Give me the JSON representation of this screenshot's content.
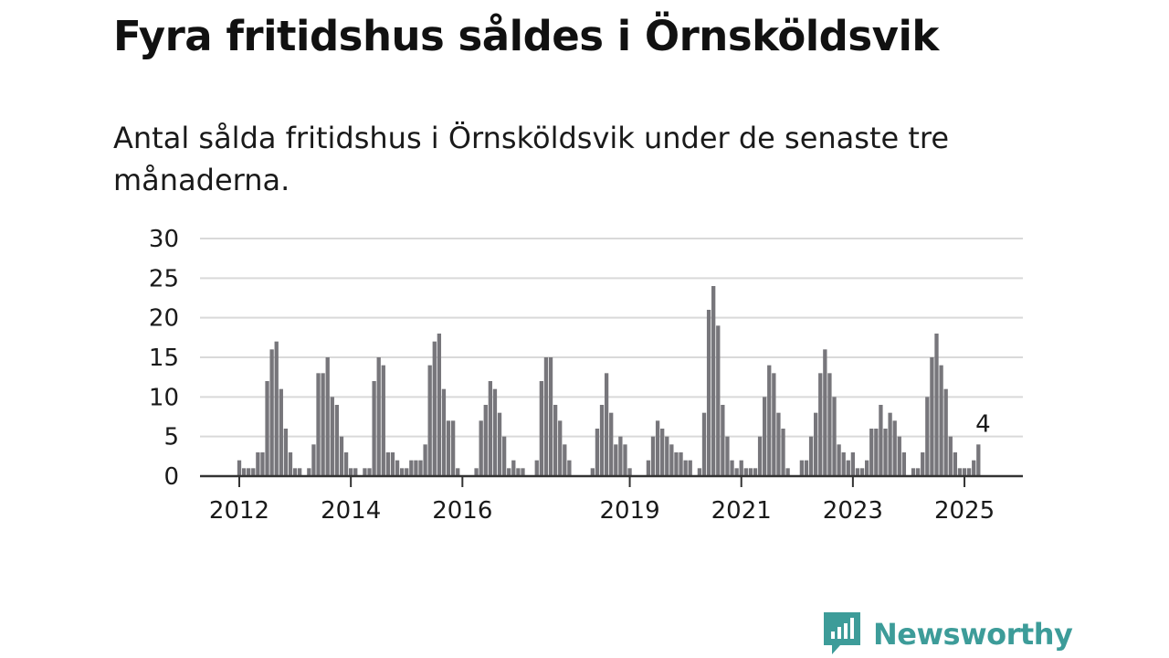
{
  "title": "Fyra fritidshus såldes i Örnsköldsvik",
  "subtitle": "Antal sålda fritidshus i Örnsköldsvik under de senaste tre månaderna.",
  "brand": {
    "name": "Newsworthy",
    "color": "#3d9c99"
  },
  "colors": {
    "bar": "#77767b",
    "highlight": "#1a9a96",
    "grid": "#d9d9d9",
    "axis": "#333333",
    "text": "#1a1a1a"
  },
  "chart_data": {
    "type": "bar",
    "ylim": [
      0,
      30
    ],
    "yticks": [
      0,
      5,
      10,
      15,
      20,
      25,
      30
    ],
    "xtick_labels": [
      {
        "label": "2012",
        "year": 2012
      },
      {
        "label": "2014",
        "year": 2014
      },
      {
        "label": "2016",
        "year": 2016
      },
      {
        "label": "2019",
        "year": 2019
      },
      {
        "label": "2021",
        "year": 2021
      },
      {
        "label": "2023",
        "year": 2023
      },
      {
        "label": "2025",
        "year": 2025
      }
    ],
    "grid": true,
    "highlight": {
      "year": 2025,
      "month": 5,
      "value": 4,
      "label": "4"
    },
    "years": [
      {
        "year": 2012,
        "values": [
          2,
          1,
          1,
          1,
          3,
          3,
          12,
          16,
          17,
          11,
          6,
          3
        ]
      },
      {
        "year": 2013,
        "values": [
          1,
          1,
          0,
          1,
          4,
          13,
          13,
          15,
          10,
          9,
          5,
          3
        ]
      },
      {
        "year": 2014,
        "values": [
          1,
          1,
          0,
          1,
          1,
          12,
          15,
          14,
          3,
          3,
          2,
          1
        ]
      },
      {
        "year": 2015,
        "values": [
          1,
          2,
          2,
          2,
          4,
          14,
          17,
          18,
          11,
          7,
          7,
          1
        ]
      },
      {
        "year": 2016,
        "values": [
          0,
          0,
          0,
          1,
          7,
          9,
          12,
          11,
          8,
          5,
          1,
          2
        ]
      },
      {
        "year": 2017,
        "values": [
          1,
          1,
          0,
          0,
          2,
          12,
          15,
          15,
          9,
          7,
          4,
          2
        ]
      },
      {
        "year": 2018,
        "values": [
          0,
          0,
          0,
          0,
          1,
          6,
          9,
          13,
          8,
          4,
          5,
          4
        ]
      },
      {
        "year": 2019,
        "values": [
          1,
          0,
          0,
          0,
          2,
          5,
          7,
          6,
          5,
          4,
          3,
          3
        ]
      },
      {
        "year": 2020,
        "values": [
          2,
          2,
          0,
          1,
          8,
          21,
          24,
          19,
          9,
          5,
          2,
          1
        ]
      },
      {
        "year": 2021,
        "values": [
          2,
          1,
          1,
          1,
          5,
          10,
          14,
          13,
          8,
          6,
          1,
          0
        ]
      },
      {
        "year": 2022,
        "values": [
          0,
          2,
          2,
          5,
          8,
          13,
          16,
          13,
          10,
          4,
          3,
          2
        ]
      },
      {
        "year": 2023,
        "values": [
          3,
          1,
          1,
          2,
          6,
          6,
          9,
          6,
          8,
          7,
          5,
          3
        ]
      },
      {
        "year": 2024,
        "values": [
          0,
          1,
          1,
          3,
          10,
          15,
          18,
          14,
          11,
          5,
          3,
          1
        ]
      },
      {
        "year": 2025,
        "values": [
          1,
          1,
          2,
          4
        ]
      }
    ]
  }
}
